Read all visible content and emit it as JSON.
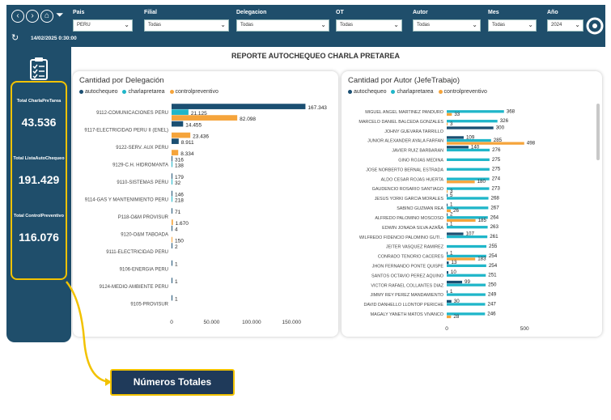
{
  "header": {
    "filters": [
      {
        "label": "Pais",
        "value": "PERU"
      },
      {
        "label": "Filial",
        "value": "Todas"
      },
      {
        "label": "Delegacion",
        "value": "Todas"
      },
      {
        "label": "OT",
        "value": "Todas"
      },
      {
        "label": "Autor",
        "value": "Todas"
      },
      {
        "label": "Mes",
        "value": "Todas"
      },
      {
        "label": "Año",
        "value": "2024"
      }
    ],
    "datetime": "14/02/2025 0:30:00"
  },
  "kpis": [
    {
      "label": "Total CharlaPreTarea",
      "value": "43.536"
    },
    {
      "label": "Total ListaAutoChequeo",
      "value": "191.429"
    },
    {
      "label": "Total ControlPreventivo",
      "value": "116.076"
    }
  ],
  "report_title": "REPORTE AUTOCHEQUEO CHARLA PRETAREA",
  "colors": {
    "autochequeo": "#1b4f72",
    "charlapretarea": "#1fb6c9",
    "controlpreventivo": "#f5a43b",
    "accent": "#f2c200",
    "navy": "#1f4e6b"
  },
  "callout": {
    "label": "Números Totales"
  },
  "chart_data": [
    {
      "type": "bar",
      "orientation": "horizontal",
      "title": "Cantidad por Delegación",
      "legend": [
        "autochequeo",
        "charlapretarea",
        "controlpreventivo"
      ],
      "categories": [
        "9112-COMUNICACIONES PERU",
        "9117-ELECTRICIDAD PERU II (ENEL)",
        "9122-SERV. AUX PERU",
        "9129-C.H. HIDROMANTA",
        "9110-SISTEMAS PERU",
        "9114-GAS Y MANTENIMIENTO PERU",
        "P118-O&M PROVISUR",
        "9120-O&M TABOADA",
        "9111-ELECTRICIDAD PERU",
        "9106-ENERGIA PERU",
        "9124-MEDIO AMBIENTE PERU",
        "9105-PROVISUR"
      ],
      "series": [
        {
          "name": "autochequeo",
          "values": [
            167343,
            14455,
            8911,
            316,
            179,
            146,
            71,
            4,
            2,
            1,
            1,
            1
          ]
        },
        {
          "name": "charlapretarea",
          "values": [
            21125,
            0,
            0,
            138,
            32,
            218,
            0,
            0,
            0,
            0,
            0,
            0
          ]
        },
        {
          "name": "controlpreventivo",
          "values": [
            82098,
            23436,
            8334,
            0,
            0,
            0,
            1670,
            150,
            0,
            0,
            0,
            0
          ]
        }
      ],
      "labels": [
        [
          "167.343",
          "21.125",
          "82.098"
        ],
        [
          "14.455",
          "",
          "23.436"
        ],
        [
          "8.911",
          "",
          "8.334"
        ],
        [
          "316",
          "138",
          ""
        ],
        [
          "179",
          "32",
          ""
        ],
        [
          "146",
          "218",
          ""
        ],
        [
          "71",
          "",
          "1.670"
        ],
        [
          "4",
          "",
          "150"
        ],
        [
          "2",
          "",
          ""
        ],
        [
          "1",
          "",
          ""
        ],
        [
          "1",
          "",
          ""
        ],
        [
          "1",
          "",
          ""
        ]
      ],
      "xticks": [
        "0",
        "50.000",
        "100.000",
        "150.000"
      ],
      "xlim": [
        0,
        175000
      ]
    },
    {
      "type": "bar",
      "orientation": "horizontal",
      "title": "Cantidad por Autor (JefeTrabajo)",
      "legend": [
        "autochequeo",
        "charlapretarea",
        "controlpreventivo"
      ],
      "categories": [
        "MIGUEL ANGEL MARTINEZ PANDURO",
        "MARCELO DANIEL BALCEDA GONZALES",
        "JOHNY GUEVARA TARRILLO",
        "JUNIOR ALEXANDER AYALA FARFAN",
        "JAVIER RUIZ BARBARAN",
        "GINO ROJAS MEDINA",
        "JOSE NORBERTO BERNAL ESTRADA",
        "ALDO CESAR ROJAS HUERTA",
        "GAUDENCIO ROSARIO SANTIAGO",
        "JESUS YORKI GARCIA MORALES",
        "SABINO GUZMAN REA",
        "ALFREDO PALOMINO MOSCOSO",
        "EDWIN JONADA SILVA AZAÑA",
        "WILFREDO FIDENCIO PALOMINO GUTI...",
        "JEITER VASQUEZ RAMIREZ",
        "CONRADO TENORIO CACERES",
        "JHON FERNANDO PONTE QUISPE",
        "SANTOS OCTAVIO PEREZ AQUINO",
        "VICTOR RAFAEL COLLANTES DIAZ",
        "JIMMY REY PEREZ MANDAMIENTO",
        "DAVID DANHELLO LLONTOP PERICHE",
        "MAGALY YANETH MATOS VIVANCO"
      ],
      "series": [
        {
          "name": "autochequeo",
          "values": [
            0,
            0,
            300,
            109,
            140,
            0,
            0,
            0,
            0,
            5,
            1,
            2,
            1,
            107,
            0,
            1,
            13,
            10,
            99,
            1,
            30,
            0
          ]
        },
        {
          "name": "charlapretarea",
          "values": [
            368,
            326,
            0,
            285,
            276,
            275,
            275,
            274,
            273,
            268,
            267,
            264,
            263,
            261,
            255,
            254,
            254,
            251,
            250,
            249,
            247,
            246
          ]
        },
        {
          "name": "controlpreventivo",
          "values": [
            33,
            3,
            0,
            498,
            0,
            0,
            0,
            180,
            3,
            0,
            26,
            185,
            0,
            0,
            0,
            183,
            0,
            0,
            0,
            0,
            0,
            28
          ]
        }
      ],
      "labels": [
        [
          "",
          "368",
          "33"
        ],
        [
          "",
          "326",
          "3"
        ],
        [
          "300",
          "",
          ""
        ],
        [
          "109",
          "285",
          "498"
        ],
        [
          "140",
          "276",
          ""
        ],
        [
          "",
          "275",
          ""
        ],
        [
          "",
          "275",
          ""
        ],
        [
          "",
          "274",
          "180"
        ],
        [
          "",
          "273",
          "3"
        ],
        [
          "5",
          "268",
          ""
        ],
        [
          "1",
          "267",
          "26"
        ],
        [
          "2",
          "264",
          "185"
        ],
        [
          "1",
          "263",
          ""
        ],
        [
          "107",
          "261",
          ""
        ],
        [
          "",
          "255",
          ""
        ],
        [
          "1",
          "254",
          "183"
        ],
        [
          "13",
          "254",
          ""
        ],
        [
          "10",
          "251",
          ""
        ],
        [
          "99",
          "250",
          ""
        ],
        [
          "1",
          "249",
          ""
        ],
        [
          "30",
          "247",
          ""
        ],
        [
          "",
          "246",
          "28"
        ]
      ],
      "xticks": [
        "0",
        "500"
      ],
      "xlim": [
        0,
        520
      ]
    }
  ]
}
